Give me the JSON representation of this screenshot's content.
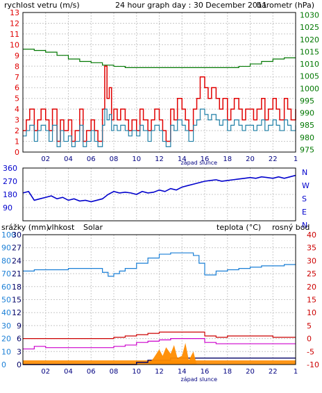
{
  "colors": {
    "wind": "#e00000",
    "gust_avg": "#1f7fa6",
    "pressure": "#007700",
    "direction": "#0000cc",
    "humidity": "#1a7fd6",
    "solar": "#ff8c00",
    "rain": "#000066",
    "temperature": "#cc0000",
    "dewpoint": "#cc00cc",
    "grid": "#c8c8c8",
    "axis_left_blue": "#1a7fd6",
    "axis_right_red": "#cc0000"
  },
  "chart_data": [
    {
      "type": "line",
      "name": "wind-pressure",
      "title": "24 hour graph day : 30 December 2011",
      "left_label": "rychlost vetru (m/s)",
      "right_label": "barometr (hPa)",
      "x_ticks": [
        "02",
        "04",
        "06",
        "08",
        "10",
        "12",
        "14",
        "16",
        "18",
        "20",
        "22",
        "1"
      ],
      "sunset_label": "západ slunce",
      "left_ticks": [
        "0",
        "1",
        "2",
        "3",
        "4",
        "5",
        "6",
        "7",
        "8",
        "9",
        "10",
        "11",
        "12",
        "13"
      ],
      "right_ticks": [
        "975",
        "980",
        "985",
        "990",
        "995",
        "1000",
        "1005",
        "1010",
        "1015",
        "1020",
        "1025",
        "1030"
      ],
      "ylim_left": [
        0,
        13
      ],
      "ylim_right": [
        974,
        1031
      ],
      "xlim": [
        0,
        24
      ],
      "series": [
        {
          "key": "gust",
          "color_key": "wind",
          "x": [
            0,
            0.3,
            0.6,
            1,
            1.3,
            1.6,
            2,
            2.3,
            2.6,
            3,
            3.3,
            3.6,
            4,
            4.3,
            4.6,
            5,
            5.3,
            5.6,
            6,
            6.3,
            6.6,
            7,
            7.2,
            7.4,
            7.6,
            7.8,
            8,
            8.3,
            8.6,
            9,
            9.3,
            9.6,
            10,
            10.3,
            10.6,
            11,
            11.3,
            11.6,
            12,
            12.3,
            12.6,
            13,
            13.3,
            13.6,
            14,
            14.3,
            14.6,
            15,
            15.3,
            15.6,
            16,
            16.3,
            16.6,
            17,
            17.3,
            17.6,
            18,
            18.3,
            18.6,
            19,
            19.3,
            19.6,
            20,
            20.3,
            20.6,
            21,
            21.3,
            21.6,
            22,
            22.3,
            22.6,
            23,
            23.3,
            23.6,
            24
          ],
          "values": [
            2,
            3,
            4,
            2,
            3,
            4,
            3,
            2,
            4,
            1,
            3,
            2,
            3,
            1,
            2,
            4,
            1,
            2,
            3,
            2,
            1,
            4,
            8,
            5,
            6,
            3,
            4,
            3,
            4,
            3,
            2,
            3,
            2,
            4,
            3,
            2,
            3,
            4,
            3,
            2,
            1,
            4,
            3,
            5,
            4,
            3,
            2,
            4,
            5,
            7,
            6,
            5,
            6,
            5,
            4,
            5,
            3,
            4,
            5,
            4,
            3,
            4,
            4,
            3,
            4,
            5,
            3,
            4,
            5,
            4,
            3,
            5,
            4,
            3,
            4
          ]
        },
        {
          "key": "avg",
          "color_key": "gust_avg",
          "x": [
            0,
            0.3,
            0.6,
            1,
            1.3,
            1.6,
            2,
            2.3,
            2.6,
            3,
            3.3,
            3.6,
            4,
            4.3,
            4.6,
            5,
            5.3,
            5.6,
            6,
            6.3,
            6.6,
            7,
            7.2,
            7.4,
            7.6,
            7.8,
            8,
            8.3,
            8.6,
            9,
            9.3,
            9.6,
            10,
            10.3,
            10.6,
            11,
            11.3,
            11.6,
            12,
            12.3,
            12.6,
            13,
            13.3,
            13.6,
            14,
            14.3,
            14.6,
            15,
            15.3,
            15.6,
            16,
            16.3,
            16.6,
            17,
            17.3,
            17.6,
            18,
            18.3,
            18.6,
            19,
            19.3,
            19.6,
            20,
            20.3,
            20.6,
            21,
            21.3,
            21.6,
            22,
            22.3,
            22.6,
            23,
            23.3,
            23.6,
            24
          ],
          "values": [
            1.5,
            2,
            2.5,
            1,
            2,
            2.5,
            2,
            1,
            2.5,
            0.5,
            2,
            1,
            1.5,
            0.5,
            1,
            2.5,
            0.5,
            1,
            2,
            1,
            0.5,
            2.5,
            4,
            3,
            3.5,
            2,
            2.5,
            2,
            2.5,
            2,
            1.5,
            2,
            1.5,
            2.5,
            2,
            1,
            2,
            2.5,
            2,
            1,
            0.5,
            2.5,
            2,
            3,
            2.5,
            2,
            1,
            2.5,
            3,
            4,
            3.5,
            3,
            3.5,
            3,
            2.5,
            3,
            2,
            2.5,
            3,
            2.5,
            2,
            2.5,
            2.5,
            2,
            2.5,
            3,
            2,
            2.5,
            3,
            2.5,
            2,
            3,
            2.5,
            2,
            2.5
          ]
        },
        {
          "key": "pressure",
          "color_key": "pressure",
          "axis": "right",
          "x": [
            0,
            1,
            2,
            3,
            4,
            5,
            6,
            7,
            8,
            9,
            10,
            11,
            12,
            13,
            14,
            15,
            16,
            17,
            18,
            19,
            20,
            21,
            22,
            23,
            24
          ],
          "values": [
            1016,
            1015.5,
            1014.8,
            1013.5,
            1012,
            1011,
            1010.5,
            1009.5,
            1009,
            1008.5,
            1008.5,
            1008.5,
            1008.5,
            1008.5,
            1008.5,
            1008.5,
            1008.5,
            1008.5,
            1008.5,
            1009,
            1010,
            1011,
            1012,
            1012.5,
            1012.5
          ]
        }
      ]
    },
    {
      "type": "scatter",
      "name": "wind-direction",
      "left_ticks": [
        "90",
        "180",
        "270",
        "360"
      ],
      "left_tick_values": [
        90,
        180,
        270,
        360
      ],
      "right_ticks": [
        "N",
        "W",
        "S",
        "E",
        "N"
      ],
      "ylim": [
        0,
        360
      ],
      "xlim": [
        0,
        24
      ],
      "x": [
        0,
        0.5,
        1,
        1.5,
        2,
        2.5,
        3,
        3.5,
        4,
        4.5,
        5,
        5.5,
        6,
        6.5,
        7,
        7.5,
        8,
        8.5,
        9,
        9.5,
        10,
        10.5,
        11,
        11.5,
        12,
        12.5,
        13,
        13.5,
        14,
        14.5,
        15,
        15.5,
        16,
        16.5,
        17,
        17.5,
        18,
        18.5,
        19,
        19.5,
        20,
        20.5,
        21,
        21.5,
        22,
        22.5,
        23,
        23.5,
        24
      ],
      "values": [
        190,
        200,
        140,
        150,
        160,
        170,
        150,
        160,
        140,
        150,
        135,
        140,
        130,
        140,
        150,
        180,
        200,
        190,
        195,
        190,
        180,
        200,
        190,
        195,
        210,
        200,
        220,
        210,
        230,
        240,
        250,
        260,
        270,
        275,
        280,
        270,
        275,
        280,
        285,
        290,
        295,
        290,
        300,
        295,
        290,
        300,
        290,
        300,
        310
      ]
    },
    {
      "type": "line",
      "name": "rain-humidity-temp",
      "left_label_rain": "srážky (mm)",
      "left_label_humidity": "vlhkost",
      "left_label_solar": "Solar",
      "right_label_temp": "teplota (°C)",
      "right_label_dew": "rosný bod",
      "x_ticks": [
        "02",
        "04",
        "06",
        "08",
        "10",
        "12",
        "14",
        "16",
        "18",
        "20",
        "22",
        "1"
      ],
      "sunset_label": "západ slunce",
      "rain_ticks": [
        "0",
        "3",
        "6",
        "9",
        "12",
        "15",
        "18",
        "21",
        "24",
        "27",
        "30"
      ],
      "humidity_ticks": [
        "0",
        "10",
        "20",
        "30",
        "40",
        "50",
        "60",
        "70",
        "80",
        "90",
        "100"
      ],
      "temp_ticks": [
        "40",
        "35",
        "30",
        "25",
        "20",
        "15",
        "10",
        "5",
        "0",
        "-5",
        "-10"
      ],
      "ylim_temp": [
        -10,
        40
      ],
      "xlim": [
        0,
        24
      ],
      "series": [
        {
          "key": "humidity",
          "color_key": "humidity",
          "axis": "humidity",
          "x": [
            0,
            1,
            2,
            3,
            4,
            5,
            6,
            7,
            7.5,
            8,
            8.5,
            9,
            10,
            11,
            12,
            13,
            14,
            15,
            15.5,
            16,
            17,
            18,
            19,
            20,
            21,
            22,
            23,
            24
          ],
          "values": [
            72,
            73,
            73,
            73,
            74,
            74,
            74,
            71,
            68,
            70,
            72,
            74,
            78,
            82,
            85,
            86,
            86,
            84,
            78,
            69,
            72,
            73,
            74,
            75,
            76,
            76,
            77,
            77
          ]
        },
        {
          "key": "temperature",
          "color_key": "temperature",
          "axis": "temp",
          "x": [
            0,
            1,
            2,
            3,
            4,
            5,
            6,
            7,
            8,
            9,
            10,
            11,
            12,
            13,
            14,
            15,
            16,
            17,
            18,
            19,
            20,
            21,
            22,
            23,
            24
          ],
          "values": [
            0,
            0,
            0,
            0,
            0,
            0,
            0,
            0,
            0.5,
            1,
            1.5,
            2,
            2.5,
            2.5,
            2.5,
            2.5,
            1,
            0.5,
            1,
            1,
            1,
            1,
            0.5,
            0.5,
            0.5
          ]
        },
        {
          "key": "dewpoint",
          "color_key": "dewpoint",
          "axis": "temp",
          "x": [
            0,
            1,
            2,
            3,
            4,
            5,
            6,
            7,
            8,
            9,
            10,
            11,
            12,
            13,
            14,
            15,
            16,
            17,
            18,
            19,
            20,
            21,
            22,
            23,
            24
          ],
          "values": [
            -4,
            -3,
            -3.5,
            -3.5,
            -3.5,
            -3.5,
            -3.5,
            -3.5,
            -3,
            -2.5,
            -1.5,
            -1,
            -0.5,
            0,
            0,
            0,
            -1.5,
            -2,
            -2,
            -2,
            -2,
            -2,
            -2,
            -2,
            -2
          ]
        },
        {
          "key": "rain",
          "color_key": "rain",
          "axis": "rain",
          "x": [
            0,
            9.5,
            10,
            11,
            12,
            13,
            14,
            15,
            16,
            17,
            18,
            19,
            20,
            21,
            22,
            23,
            24
          ],
          "values": [
            0,
            0,
            0.5,
            1,
            1,
            1.5,
            1.5,
            1.5,
            1.5,
            1.5,
            1.5,
            1.5,
            1.5,
            1.5,
            1.5,
            1.5,
            1.5
          ]
        },
        {
          "key": "solar",
          "color_key": "solar",
          "axis": "rain",
          "x": [
            0,
            11,
            11.5,
            12,
            12.3,
            12.6,
            13,
            13.3,
            13.6,
            14,
            14.3,
            14.6,
            15,
            15.3,
            24
          ],
          "values": [
            0,
            0,
            1.5,
            3.5,
            2,
            4,
            2.5,
            4.5,
            1.5,
            2,
            5,
            1,
            3,
            0,
            0
          ]
        }
      ]
    }
  ]
}
